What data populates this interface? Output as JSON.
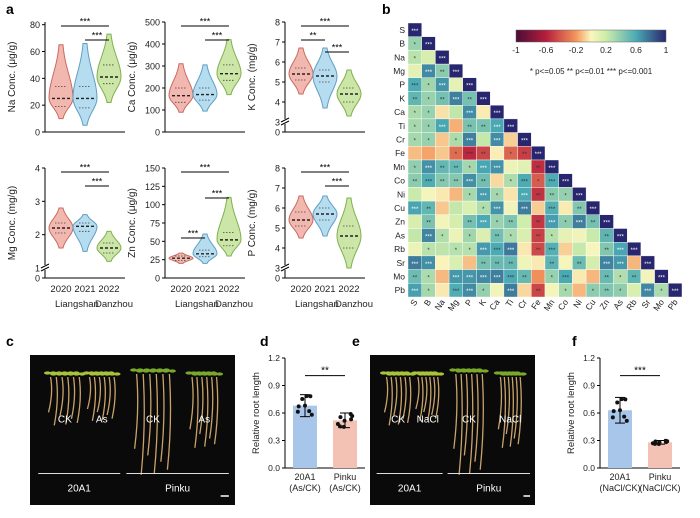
{
  "panel_letters": {
    "a": "a",
    "b": "b",
    "c": "c",
    "d": "d",
    "e": "e",
    "f": "f"
  },
  "group_labels": {
    "years": [
      "2020",
      "2021",
      "2022"
    ],
    "site_left": "Liangshan",
    "site_right": "Danzhou"
  },
  "colors": {
    "y2020": "#f2b8b0",
    "y2021": "#b6dcef",
    "y2022": "#cbe6a6",
    "d_bar1": "#a7c6ea",
    "d_bar2": "#f4c1b5"
  },
  "chart_data": [
    {
      "type": "violin",
      "id": "Na",
      "title": "",
      "ylabel": "Na Conc. (μg/g)",
      "categories": [
        "2020",
        "2021",
        "2022"
      ],
      "yticks": [
        0,
        20,
        40,
        60,
        80
      ],
      "ylim": [
        0,
        82
      ],
      "medians": [
        25,
        25,
        41
      ],
      "quartiles": [
        [
          19,
          34
        ],
        [
          18,
          34
        ],
        [
          36,
          50
        ]
      ],
      "ranges": [
        [
          10,
          65
        ],
        [
          5,
          66
        ],
        [
          22,
          73
        ]
      ],
      "significance": [
        {
          "from": 0,
          "to": 2,
          "label": "***"
        },
        {
          "from": 1,
          "to": 2,
          "label": "***"
        }
      ]
    },
    {
      "type": "violin",
      "id": "Ca",
      "title": "",
      "ylabel": "Ca Conc. (μg/g)",
      "categories": [
        "2020",
        "2021",
        "2022"
      ],
      "yticks": [
        0,
        100,
        200,
        300,
        400,
        500
      ],
      "ylim": [
        0,
        500
      ],
      "medians": [
        165,
        170,
        265
      ],
      "quartiles": [
        [
          135,
          200
        ],
        [
          145,
          200
        ],
        [
          235,
          305
        ]
      ],
      "ranges": [
        [
          90,
          310
        ],
        [
          95,
          305
        ],
        [
          170,
          420
        ]
      ],
      "significance": [
        {
          "from": 0,
          "to": 2,
          "label": "***"
        },
        {
          "from": 1,
          "to": 2,
          "label": "***"
        }
      ]
    },
    {
      "type": "violin",
      "id": "K",
      "title": "",
      "ylabel": "K Conc. (mg/g)",
      "categories": [
        "2020",
        "2021",
        "2022"
      ],
      "yticks": [
        0,
        3,
        4,
        5,
        6,
        7,
        8
      ],
      "ylim": [
        2.5,
        8
      ],
      "axis_break": true,
      "medians": [
        5.4,
        5.3,
        4.4
      ],
      "quartiles": [
        [
          5.1,
          5.7
        ],
        [
          5.0,
          5.6
        ],
        [
          4.0,
          4.7
        ]
      ],
      "ranges": [
        [
          4.4,
          6.7
        ],
        [
          3.7,
          6.7
        ],
        [
          3.3,
          5.6
        ]
      ],
      "significance": [
        {
          "from": 0,
          "to": 2,
          "label": "***"
        },
        {
          "from": 0,
          "to": 1,
          "label": "**"
        },
        {
          "from": 1,
          "to": 2,
          "label": "***"
        }
      ]
    },
    {
      "type": "violin",
      "id": "Mg",
      "title": "",
      "ylabel": "Mg Conc. (mg/g)",
      "categories": [
        "2020",
        "2021",
        "2022"
      ],
      "yticks": [
        0,
        1,
        2,
        3,
        4
      ],
      "ylim": [
        0.7,
        4
      ],
      "axis_break": true,
      "medians": [
        2.2,
        2.25,
        1.6
      ],
      "quartiles": [
        [
          2.05,
          2.35
        ],
        [
          2.1,
          2.35
        ],
        [
          1.45,
          1.75
        ]
      ],
      "ranges": [
        [
          1.6,
          2.8
        ],
        [
          1.5,
          2.6
        ],
        [
          1.2,
          2.1
        ]
      ],
      "significance": [
        {
          "from": 0,
          "to": 2,
          "label": "***"
        },
        {
          "from": 1,
          "to": 2,
          "label": "***"
        }
      ]
    },
    {
      "type": "violin",
      "id": "Zn",
      "title": "",
      "ylabel": "Zn Conc. (μg/g)",
      "categories": [
        "2020",
        "2021",
        "2022"
      ],
      "yticks": [
        0,
        25,
        50,
        75,
        100,
        125,
        150
      ],
      "ylim": [
        0,
        150
      ],
      "medians": [
        27,
        33,
        52
      ],
      "quartiles": [
        [
          24,
          30
        ],
        [
          29,
          38
        ],
        [
          44,
          62
        ]
      ],
      "ranges": [
        [
          20,
          34
        ],
        [
          20,
          60
        ],
        [
          30,
          110
        ]
      ],
      "significance": [
        {
          "from": 0,
          "to": 2,
          "label": "***"
        },
        {
          "from": 1,
          "to": 2,
          "label": "***"
        },
        {
          "from": 0,
          "to": 1,
          "label": "***"
        }
      ]
    },
    {
      "type": "violin",
      "id": "P",
      "title": "",
      "ylabel": "P Conc. (mg/g)",
      "categories": [
        "2020",
        "2021",
        "2022"
      ],
      "yticks": [
        0,
        3,
        4,
        5,
        6,
        7,
        8
      ],
      "ylim": [
        2.5,
        8
      ],
      "axis_break": true,
      "medians": [
        5.4,
        5.7,
        4.6
      ],
      "quartiles": [
        [
          5.1,
          5.8
        ],
        [
          5.4,
          6.0
        ],
        [
          4.0,
          5.1
        ]
      ],
      "ranges": [
        [
          4.5,
          6.6
        ],
        [
          4.6,
          6.6
        ],
        [
          3.0,
          6.5
        ]
      ],
      "significance": [
        {
          "from": 0,
          "to": 2,
          "label": "***"
        },
        {
          "from": 1,
          "to": 2,
          "label": "***"
        }
      ]
    },
    {
      "type": "heatmap",
      "id": "corr",
      "labels": [
        "S",
        "B",
        "Na",
        "Mg",
        "P",
        "K",
        "Ca",
        "Ti",
        "Cr",
        "Fe",
        "Mn",
        "Co",
        "Ni",
        "Cu",
        "Zn",
        "As",
        "Rb",
        "Sr",
        "Mo",
        "Pb"
      ],
      "colorbar": {
        "min": -1,
        "max": 1,
        "ticks": [
          "-1",
          "-0.6",
          "-0.2",
          "0.2",
          "0.6",
          "1"
        ]
      },
      "legend_text": "* p<=0.05  ** p<=0.01  *** p<=0.001"
    },
    {
      "type": "bar",
      "id": "d",
      "ylabel": "Relative root length",
      "categories": [
        "20A1\n(As/CK)",
        "Pinku\n(As/CK)"
      ],
      "values": [
        0.68,
        0.52
      ],
      "errors": [
        0.12,
        0.08
      ],
      "yticks": [
        "0.0",
        "0.3",
        "0.6",
        "0.9",
        "1.2"
      ],
      "ylim": [
        0,
        1.2
      ],
      "significance": "**"
    },
    {
      "type": "bar",
      "id": "f",
      "ylabel": "Relative root length",
      "categories": [
        "20A1\n(NaCl/CK)",
        "Pinku\n(NaCl/CK)"
      ],
      "values": [
        0.63,
        0.28
      ],
      "errors": [
        0.14,
        0.02
      ],
      "yticks": [
        "0.0",
        "0.3",
        "0.6",
        "0.9",
        "1.2"
      ],
      "ylim": [
        0,
        1.2
      ],
      "significance": "***"
    }
  ],
  "photos": {
    "c": {
      "labels": [
        "CK",
        "As",
        "CK",
        "As"
      ],
      "groups": [
        "20A1",
        "Pinku"
      ]
    },
    "e": {
      "labels": [
        "CK",
        "NaCl",
        "CK",
        "NaCl"
      ],
      "groups": [
        "20A1",
        "Pinku"
      ]
    }
  }
}
